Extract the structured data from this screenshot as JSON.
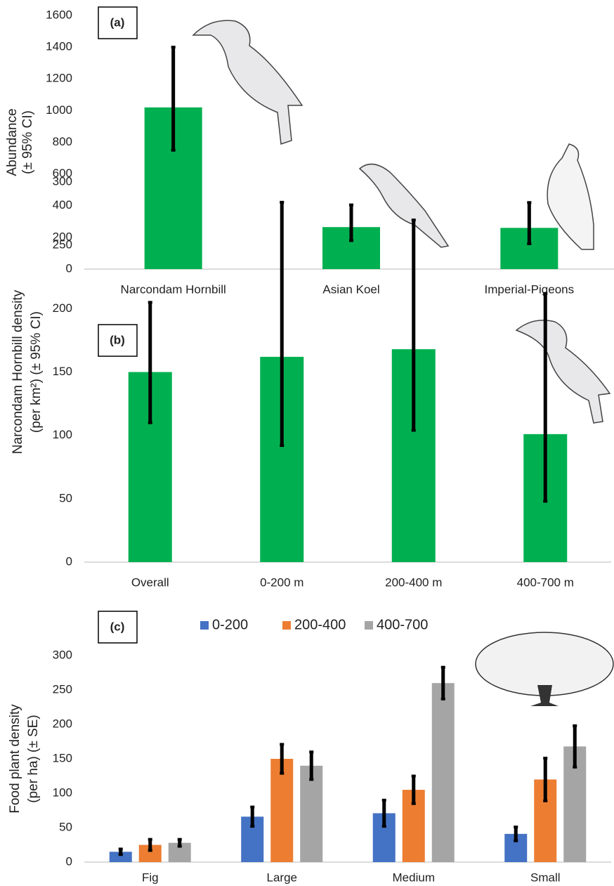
{
  "chart_data": [
    {
      "type": "bar",
      "label": "(a)",
      "ylabel": [
        "Abundance",
        "(± 95% CI)"
      ],
      "categories": [
        "Narcondam Hornbill",
        "Asian Koel",
        "Imperial-Pigeons"
      ],
      "values": [
        1020,
        265,
        260
      ],
      "ci_lower": [
        750,
        180,
        160
      ],
      "ci_upper": [
        1400,
        405,
        420
      ],
      "color": "#00b050",
      "ylim": [
        0,
        1600
      ],
      "yticks": [
        0,
        200,
        400,
        600,
        800,
        1000,
        1200,
        1400,
        1600
      ]
    },
    {
      "type": "bar",
      "label": "(b)",
      "ylabel": [
        "Narcondam Hornbill density",
        "(per km²) (± 95% CI)"
      ],
      "categories": [
        "Overall",
        "0-200 m",
        "200-400 m",
        "400-700 m"
      ],
      "values": [
        150,
        162,
        168,
        101
      ],
      "ci_lower": [
        110,
        92,
        104,
        48
      ],
      "ci_upper": [
        205,
        284,
        270,
        212
      ],
      "color": "#00b050",
      "ylim": [
        0,
        300
      ],
      "yticks": [
        0,
        50,
        100,
        150,
        200,
        250,
        300
      ]
    },
    {
      "type": "grouped_bar",
      "label": "(c)",
      "ylabel": [
        "Food plant density",
        "(per ha) (± SE)"
      ],
      "categories": [
        "Fig",
        "Large",
        "Medium",
        "Small"
      ],
      "series": [
        {
          "name": "0-200",
          "color": "#4472c4",
          "values": [
            15,
            66,
            71,
            41
          ],
          "errors": [
            4,
            14,
            19,
            10
          ]
        },
        {
          "name": "200-400",
          "color": "#ed7d31",
          "values": [
            25,
            150,
            105,
            120
          ],
          "errors": [
            8,
            21,
            20,
            31
          ]
        },
        {
          "name": "400-700",
          "color": "#a5a5a5",
          "values": [
            28,
            140,
            260,
            168
          ],
          "errors": [
            5,
            20,
            23,
            30
          ]
        }
      ],
      "ylim": [
        0,
        300
      ],
      "yticks": [
        0,
        50,
        100,
        150,
        200,
        250,
        300
      ]
    }
  ]
}
